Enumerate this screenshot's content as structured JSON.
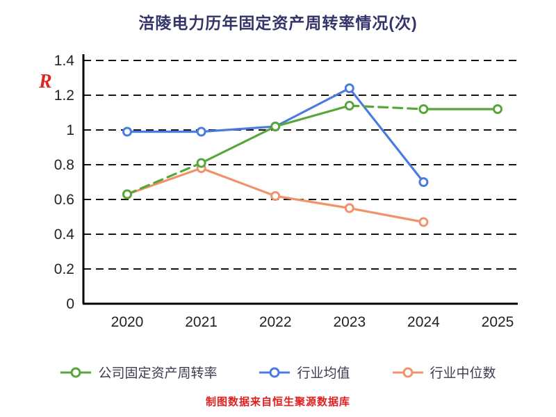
{
  "title": "涪陵电力历年固定资产周转率情况(次)",
  "watermark": "R",
  "footer": "制图数据来自恒生聚源数据库",
  "colors": {
    "company": "#57a639",
    "industry_avg": "#4a7be0",
    "industry_median": "#f0936b",
    "grid": "#141414",
    "axis": "#000000",
    "tick_label": "#222222",
    "title": "#34346a",
    "legend_text": "#3c3c50",
    "footer": "#e02020",
    "watermark": "#e02424",
    "marker_fill": "#ffffff"
  },
  "chart_data": {
    "type": "line",
    "x": [
      "2020",
      "2021",
      "2022",
      "2023",
      "2024",
      "2025"
    ],
    "series": [
      {
        "name": "公司固定资产周转率",
        "color_key": "company",
        "values": [
          0.63,
          0.81,
          1.02,
          1.14,
          1.12,
          1.12
        ],
        "dashed_segments": [
          [
            0,
            1
          ],
          [
            3,
            4
          ]
        ]
      },
      {
        "name": "行业均值",
        "color_key": "industry_avg",
        "values": [
          0.99,
          0.99,
          1.02,
          1.24,
          0.7,
          null
        ],
        "dashed_segments": []
      },
      {
        "name": "行业中位数",
        "color_key": "industry_median",
        "values": [
          0.63,
          0.78,
          0.62,
          0.55,
          0.47,
          null
        ],
        "dashed_segments": []
      }
    ],
    "ylim": [
      0,
      1.4
    ],
    "yticks": [
      0,
      0.2,
      0.4,
      0.6,
      0.8,
      1,
      1.2,
      1.4
    ],
    "grid": "dashed-horizontal",
    "legend_position": "bottom"
  }
}
